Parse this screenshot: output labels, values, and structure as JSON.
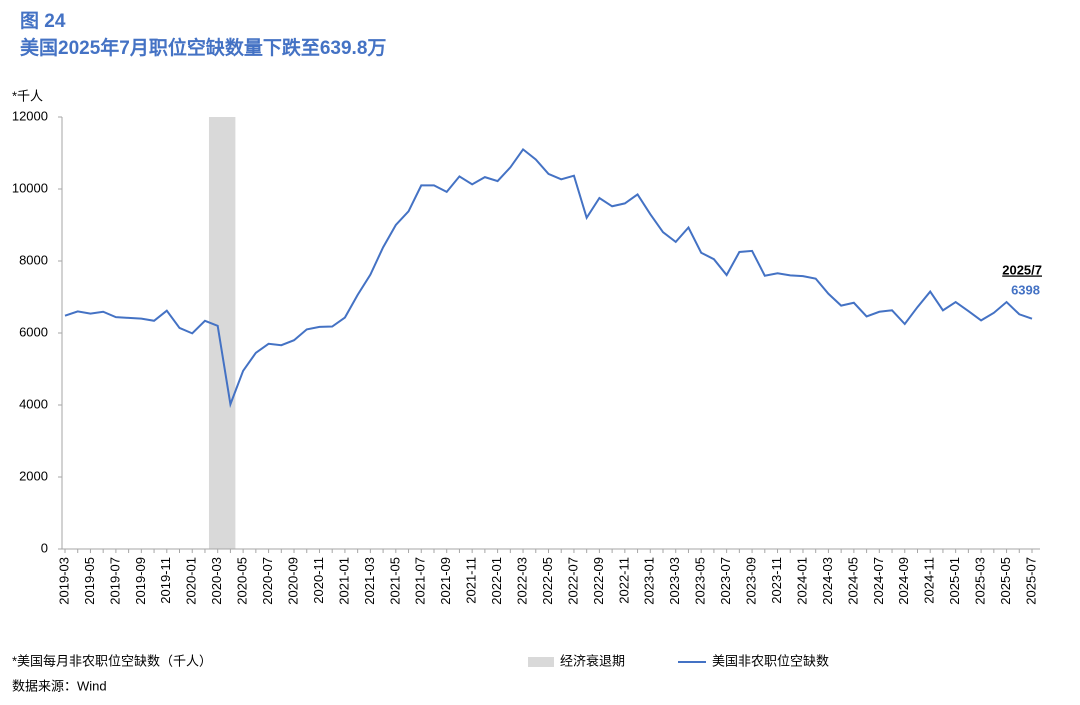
{
  "chart_data": {
    "type": "line",
    "label": "图 24",
    "title": "美国2025年7月职位空缺数量下跌至639.8万",
    "y_label": "*千人",
    "footnote": "*美国每月非农职位空缺数（千人）",
    "source": "数据来源：Wind",
    "categories": [
      "2019-03",
      null,
      "2019-05",
      null,
      "2019-07",
      null,
      "2019-09",
      null,
      "2019-11",
      null,
      "2020-01",
      null,
      "2020-03",
      null,
      "2020-05",
      null,
      "2020-07",
      null,
      "2020-09",
      null,
      "2020-11",
      null,
      "2021-01",
      null,
      "2021-03",
      null,
      "2021-05",
      null,
      "2021-07",
      null,
      "2021-09",
      null,
      "2021-11",
      null,
      "2022-01",
      null,
      "2022-03",
      null,
      "2022-05",
      null,
      "2022-07",
      null,
      "2022-09",
      null,
      "2022-11",
      null,
      "2023-01",
      null,
      "2023-03",
      null,
      "2023-05",
      null,
      "2023-07",
      null,
      "2023-09",
      null,
      "2023-11",
      null,
      "2024-01",
      null,
      "2024-03",
      null,
      "2024-05",
      null,
      "2024-07",
      null,
      "2024-09",
      null,
      "2024-11",
      null,
      "2025-01",
      null,
      "2025-03",
      null,
      "2025-05",
      null,
      "2025-07"
    ],
    "series": [
      {
        "name": "美国非农职位空缺数",
        "color": "#4472c4",
        "values": [
          6480,
          6600,
          6540,
          6590,
          6440,
          6420,
          6400,
          6340,
          6620,
          6140,
          5990,
          6340,
          6200,
          4020,
          4950,
          5450,
          5700,
          5660,
          5800,
          6100,
          6170,
          6180,
          6430,
          7060,
          7620,
          8380,
          9000,
          9380,
          10100,
          10100,
          9920,
          10350,
          10130,
          10330,
          10220,
          10600,
          11100,
          10820,
          10420,
          10270,
          10370,
          9200,
          9750,
          9520,
          9600,
          9850,
          9300,
          8800,
          8530,
          8930,
          8230,
          8050,
          7610,
          8250,
          8280,
          7590,
          7660,
          7600,
          7580,
          7510,
          7090,
          6760,
          6840,
          6460,
          6590,
          6630,
          6250,
          6720,
          7150,
          6630,
          6860,
          6610,
          6350,
          6560,
          6860,
          6520,
          6398
        ]
      }
    ],
    "shaded_regions": [
      {
        "name": "经济衰退期",
        "start": "2020-02",
        "end": "2020-04",
        "color": "#d9d9d9"
      }
    ],
    "annotation": "2025/7",
    "ylim": [
      0,
      12000
    ],
    "yticks": [
      0,
      2000,
      4000,
      6000,
      8000,
      10000,
      12000
    ],
    "grid": false
  }
}
